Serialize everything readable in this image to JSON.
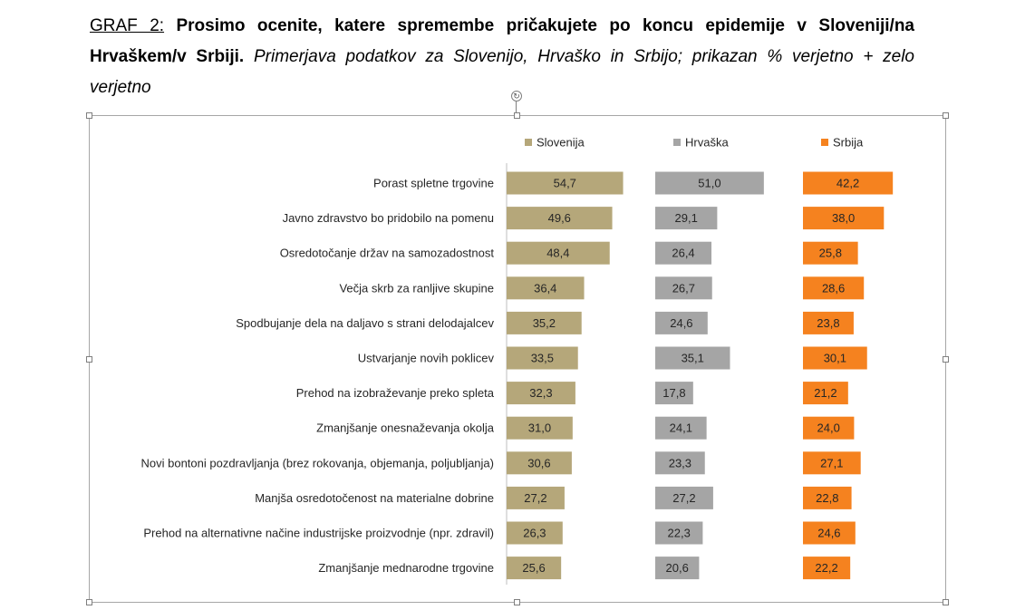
{
  "caption": {
    "label": "GRAF 2:",
    "bold": "Prosimo ocenite, katere spremembe pričakujete po koncu epidemije v Sloveniji/na Hrvaškem/v Srbiji.",
    "italic": "Primerjava podatkov za Slovenijo, Hrvaško in Srbijo; prikazan % verjetno + zelo verjetno"
  },
  "chart_data": {
    "type": "bar",
    "orientation": "horizontal",
    "layout": "three side-by-side panels, one per series",
    "categories": [
      "Porast spletne trgovine",
      "Javno zdravstvo bo pridobilo na pomenu",
      "Osredotočanje držav na samozadostnost",
      "Večja skrb za ranljive skupine",
      "Spodbujanje dela na daljavo s strani delodajalcev",
      "Ustvarjanje novih poklicev",
      "Prehod na izobraževanje preko spleta",
      "Zmanjšanje onesnaževanja okolja",
      "Novi bontoni pozdravljanja (brez rokovanja, objemanja, poljubljanja)",
      "Manjša osredotočenost na materialne dobrine",
      "Prehod na alternativne načine industrijske proizvodnje (npr. zdravil)",
      "Zmanjšanje mednarodne trgovine"
    ],
    "series": [
      {
        "name": "Slovenija",
        "color": "#b5a77a",
        "values": [
          54.7,
          49.6,
          48.4,
          36.4,
          35.2,
          33.5,
          32.3,
          31.0,
          30.6,
          27.2,
          26.3,
          25.6
        ],
        "labels": [
          "54,7",
          "49,6",
          "48,4",
          "36,4",
          "35,2",
          "33,5",
          "32,3",
          "31,0",
          "30,6",
          "27,2",
          "26,3",
          "25,6"
        ]
      },
      {
        "name": "Hrvaška",
        "color": "#a5a5a5",
        "values": [
          51.0,
          29.1,
          26.4,
          26.7,
          24.6,
          35.1,
          17.8,
          24.1,
          23.3,
          27.2,
          22.3,
          20.6
        ],
        "labels": [
          "51,0",
          "29,1",
          "26,4",
          "26,7",
          "24,6",
          "35,1",
          "17,8",
          "24,1",
          "23,3",
          "27,2",
          "22,3",
          "20,6"
        ]
      },
      {
        "name": "Srbija",
        "color": "#f5821f",
        "values": [
          42.2,
          38.0,
          25.8,
          28.6,
          23.8,
          30.1,
          21.2,
          24.0,
          27.1,
          22.8,
          24.6,
          22.2
        ],
        "labels": [
          "42,2",
          "38,0",
          "25,8",
          "28,6",
          "23,8",
          "30,1",
          "21,2",
          "24,0",
          "27,1",
          "22,8",
          "24,6",
          "22,2"
        ]
      }
    ],
    "legend_position": "top",
    "xlim": [
      0,
      100
    ],
    "grid": false
  }
}
